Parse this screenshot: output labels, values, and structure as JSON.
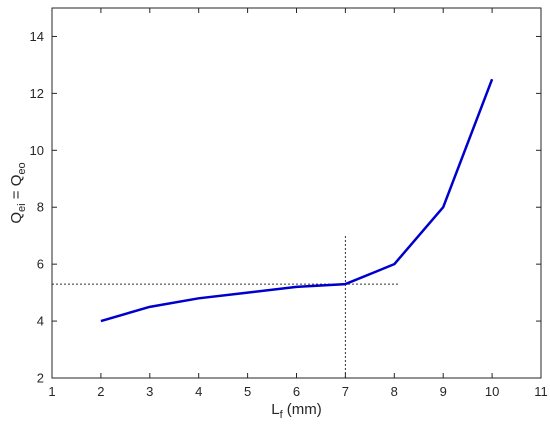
{
  "chart_data": {
    "type": "line",
    "xlabel": {
      "main": "L",
      "sub": "f",
      "suffix": " (mm)"
    },
    "ylabel": {
      "a_main": "Q",
      "a_sub": "ei",
      "eq": " = ",
      "b_main": "Q",
      "b_sub": "eo"
    },
    "xlim": [
      1,
      11
    ],
    "ylim": [
      2,
      15
    ],
    "xticks": [
      1,
      2,
      3,
      4,
      5,
      6,
      7,
      8,
      9,
      10,
      11
    ],
    "yticks": [
      2,
      4,
      6,
      8,
      10,
      12,
      14
    ],
    "series": [
      {
        "color": "#0000cc",
        "x": [
          2,
          3,
          4,
          5,
          6,
          7,
          8,
          9,
          10
        ],
        "y": [
          4.0,
          4.5,
          4.8,
          5.0,
          5.2,
          5.3,
          6.0,
          8.0,
          12.5
        ]
      }
    ],
    "reference_lines": {
      "horizontal": {
        "y": 5.3,
        "x_from": 1,
        "x_to": 8.1
      },
      "vertical": {
        "x": 7,
        "y_from": 2,
        "y_to": 7
      }
    },
    "grid": false,
    "legend": "none"
  }
}
